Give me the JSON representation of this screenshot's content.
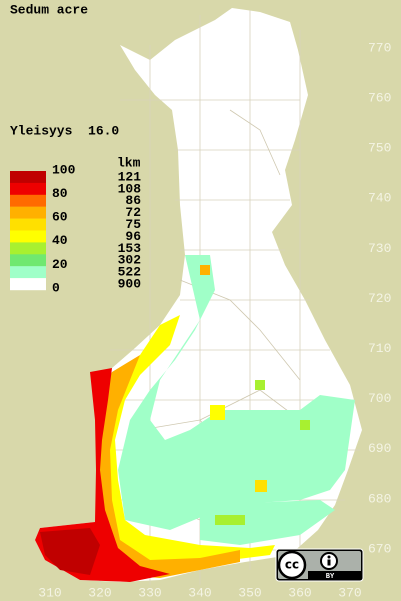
{
  "title": "Sedum acre",
  "frequency": "Yleisyys  16.0",
  "legend": {
    "scale_labels": [
      "100",
      "80",
      "60",
      "40",
      "20",
      "0"
    ],
    "count_title": "lkm",
    "counts": [
      "121",
      "108",
      "86",
      "72",
      "75",
      "96",
      "153",
      "302",
      "522",
      "900"
    ],
    "colors": [
      "#c00000",
      "#ee0000",
      "#ff6a00",
      "#ffb000",
      "#ffe000",
      "#ffff00",
      "#a8f030",
      "#70e870",
      "#a0ffc8",
      "#ffffff"
    ]
  },
  "northing_labels": [
    "770",
    "760",
    "750",
    "740",
    "730",
    "720",
    "710",
    "700",
    "690",
    "680",
    "670"
  ],
  "easting_labels": [
    "310",
    "320",
    "330",
    "340",
    "350",
    "360",
    "370"
  ],
  "license": {
    "cc": "cc",
    "by": "BY"
  }
}
